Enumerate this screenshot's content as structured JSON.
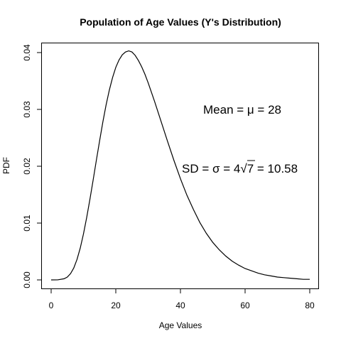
{
  "chart_data": {
    "type": "line",
    "title": "Population of Age Values (Y's Distribution)",
    "xlabel": "Age Values",
    "ylabel": "PDF",
    "xlim": [
      0,
      80
    ],
    "ylim": [
      0,
      0.04
    ],
    "x_ticks": [
      0,
      20,
      40,
      60,
      80
    ],
    "y_ticks": [
      "0.00",
      "0.01",
      "0.02",
      "0.03",
      "0.04"
    ],
    "grid": false,
    "series": [
      {
        "x": [
          0,
          2,
          4,
          5,
          6,
          7,
          8,
          9,
          10,
          11,
          12,
          13,
          14,
          15,
          16,
          17,
          18,
          19,
          20,
          21,
          22,
          23,
          24,
          25,
          26,
          27,
          28,
          29,
          30,
          32,
          34,
          36,
          38,
          40,
          42,
          44,
          46,
          48,
          50,
          52,
          54,
          56,
          58,
          60,
          62,
          64,
          66,
          68,
          70,
          72,
          74,
          76,
          78,
          80
        ],
        "y": [
          0,
          1e-05,
          0.0002,
          0.0005,
          0.0011,
          0.0021,
          0.0036,
          0.0056,
          0.0081,
          0.011,
          0.0142,
          0.0176,
          0.0211,
          0.0245,
          0.0278,
          0.0308,
          0.0334,
          0.0356,
          0.0374,
          0.0387,
          0.0396,
          0.0401,
          0.0403,
          0.0401,
          0.0395,
          0.0386,
          0.0375,
          0.0362,
          0.0347,
          0.0314,
          0.0279,
          0.0244,
          0.021,
          0.0178,
          0.0149,
          0.0124,
          0.0101,
          0.0082,
          0.0066,
          0.0053,
          0.0042,
          0.0033,
          0.0026,
          0.002,
          0.0016,
          0.0012,
          0.0009,
          0.0007,
          0.0005,
          0.0004,
          0.0003,
          0.0002,
          0.0001,
          0.0001
        ]
      }
    ],
    "annotations": {
      "mean_prefix": "Mean = ",
      "mean_symbol": "μ",
      "mean_suffix": " = 28",
      "sd_prefix": "SD = ",
      "sd_symbol": "σ",
      "sd_middle": " = 4",
      "sd_radical": "√",
      "sd_radicand": "7",
      "sd_suffix": " = 10.58"
    }
  }
}
